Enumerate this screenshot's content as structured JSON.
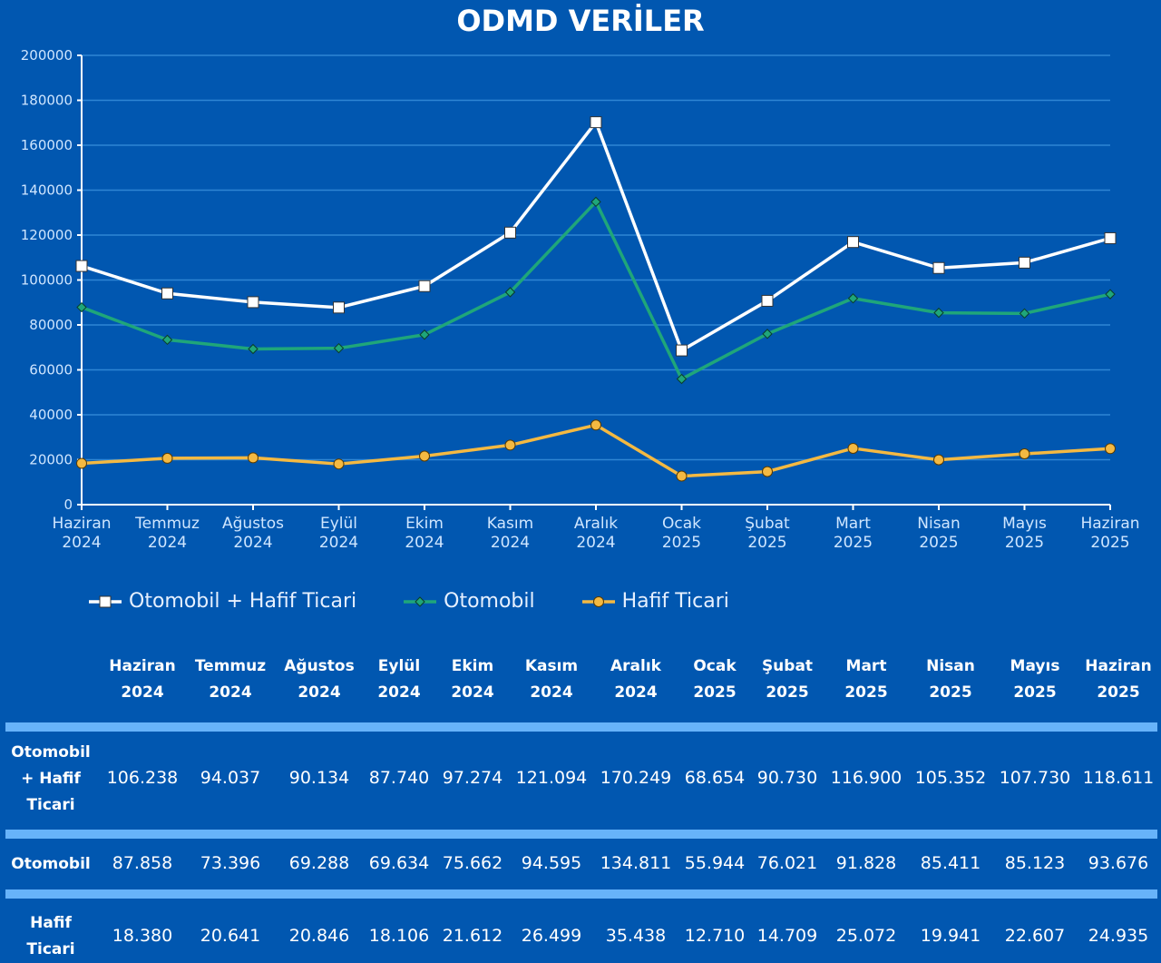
{
  "chart_data": {
    "type": "line",
    "title": "ODMD VERİLER",
    "categories": [
      [
        "Haziran",
        "2024"
      ],
      [
        "Temmuz",
        "2024"
      ],
      [
        "Ağustos",
        "2024"
      ],
      [
        "Eylül",
        "2024"
      ],
      [
        "Ekim",
        "2024"
      ],
      [
        "Kasım",
        "2024"
      ],
      [
        "Aralık",
        "2024"
      ],
      [
        "Ocak",
        "2025"
      ],
      [
        "Şubat",
        "2025"
      ],
      [
        "Mart",
        "2025"
      ],
      [
        "Nisan",
        "2025"
      ],
      [
        "Mayıs",
        "2025"
      ],
      [
        "Haziran",
        "2025"
      ]
    ],
    "ylim": [
      0,
      200000
    ],
    "yticks": [
      "0",
      "20000",
      "40000",
      "60000",
      "80000",
      "100000",
      "120000",
      "140000",
      "160000",
      "180000",
      "200000"
    ],
    "grid": true,
    "legend_position": "bottom",
    "series": [
      {
        "name": "Otomobil + Hafif Ticari",
        "color": "#ffffff",
        "marker": "square",
        "values": [
          106238,
          94037,
          90134,
          87740,
          97274,
          121094,
          170249,
          68654,
          90730,
          116900,
          105352,
          107730,
          118611
        ]
      },
      {
        "name": "Otomobil",
        "color": "#1fa67a",
        "marker": "diamond",
        "values": [
          87858,
          73396,
          69288,
          69634,
          75662,
          94595,
          134811,
          55944,
          76021,
          91828,
          85411,
          85123,
          93676
        ]
      },
      {
        "name": "Hafif Ticari",
        "color": "#f4b942",
        "marker": "circle",
        "values": [
          18380,
          20641,
          20846,
          18106,
          21612,
          26499,
          35438,
          12710,
          14709,
          25072,
          19941,
          22607,
          24935
        ]
      }
    ]
  },
  "table": {
    "headers": [
      [
        "Haziran",
        "2024"
      ],
      [
        "Temmuz",
        "2024"
      ],
      [
        "Ağustos",
        "2024"
      ],
      [
        "Eylül",
        "2024"
      ],
      [
        "Ekim",
        "2024"
      ],
      [
        "Kasım",
        "2024"
      ],
      [
        "Aralık",
        "2024"
      ],
      [
        "Ocak",
        "2025"
      ],
      [
        "Şubat",
        "2025"
      ],
      [
        "Mart",
        "2025"
      ],
      [
        "Nisan",
        "2025"
      ],
      [
        "Mayıs",
        "2025"
      ],
      [
        "Haziran",
        "2025"
      ]
    ],
    "rows": [
      {
        "label": [
          "Otomobil",
          "+ Hafif",
          "Ticari"
        ],
        "values": [
          "106.238",
          "94.037",
          "90.134",
          "87.740",
          "97.274",
          "121.094",
          "170.249",
          "68.654",
          "90.730",
          "116.900",
          "105.352",
          "107.730",
          "118.611"
        ]
      },
      {
        "label": [
          "Otomobil"
        ],
        "values": [
          "87.858",
          "73.396",
          "69.288",
          "69.634",
          "75.662",
          "94.595",
          "134.811",
          "55.944",
          "76.021",
          "91.828",
          "85.411",
          "85.123",
          "93.676"
        ]
      },
      {
        "label": [
          "Hafif",
          "Ticari"
        ],
        "values": [
          "18.380",
          "20.641",
          "20.846",
          "18.106",
          "21.612",
          "26.499",
          "35.438",
          "12.710",
          "14.709",
          "25.072",
          "19.941",
          "22.607",
          "24.935"
        ]
      }
    ]
  }
}
